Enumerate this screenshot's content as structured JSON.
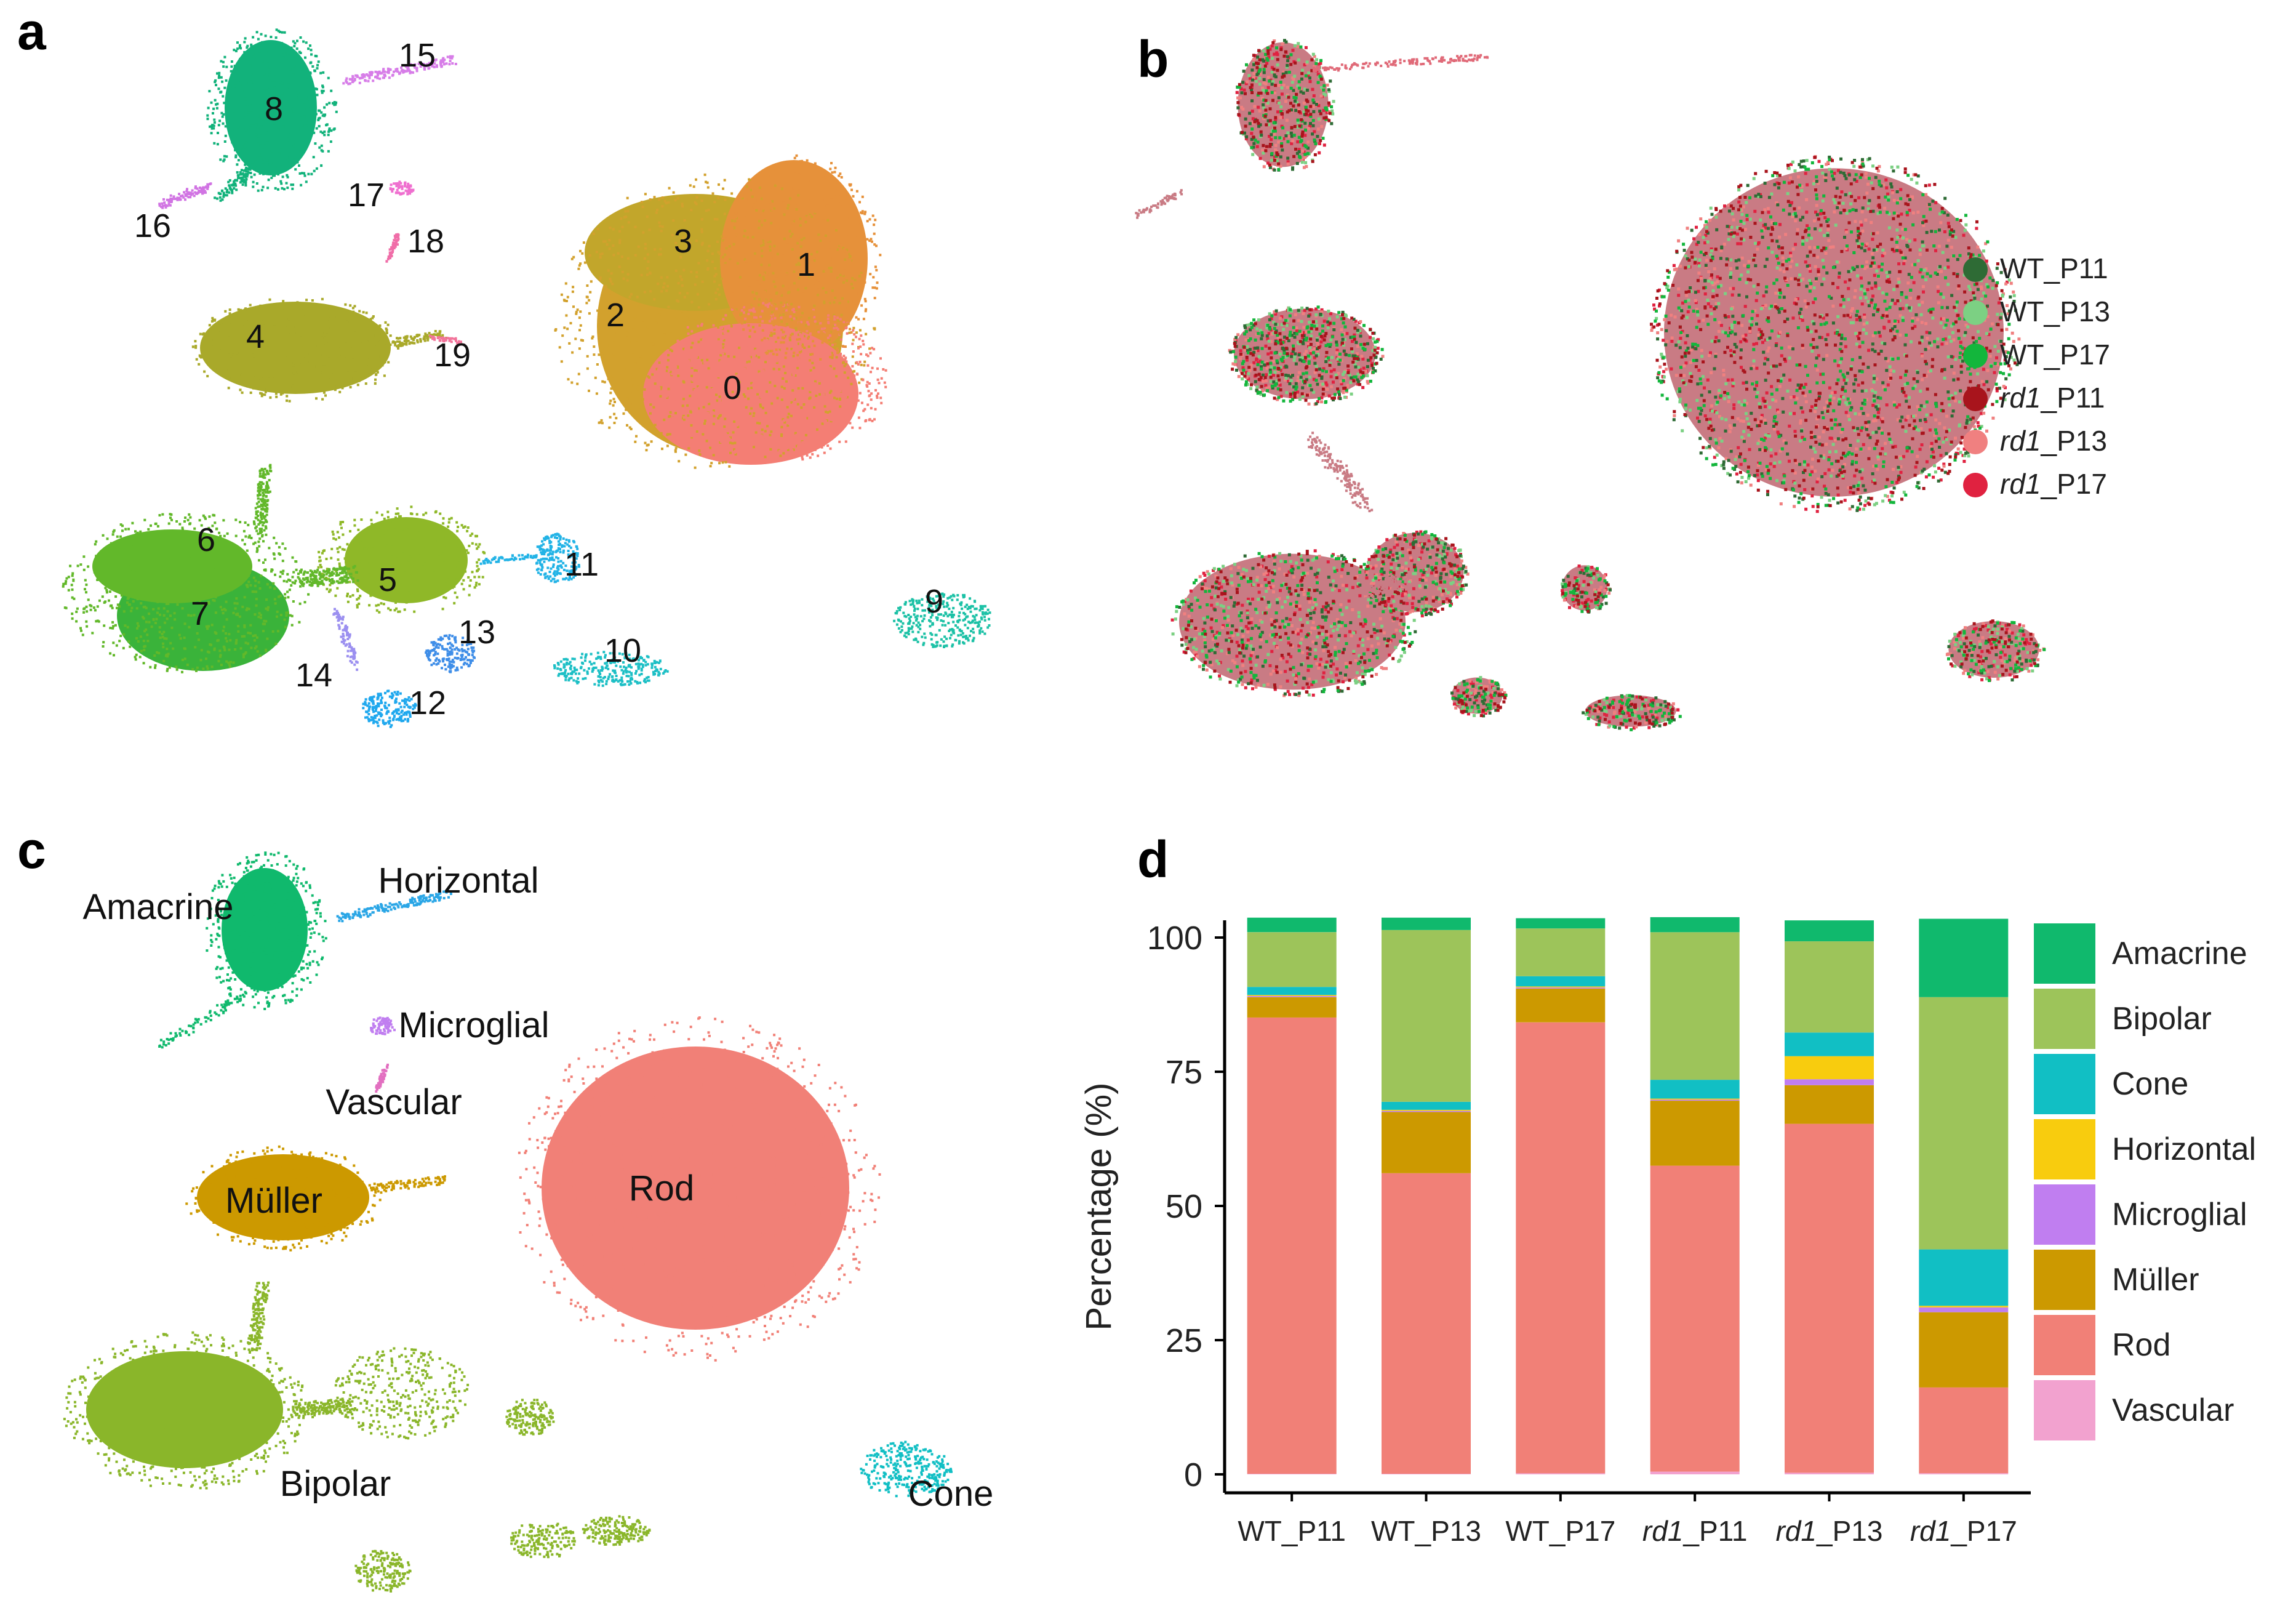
{
  "panels": {
    "a": {
      "letter": "a"
    },
    "b": {
      "letter": "b"
    },
    "c": {
      "letter": "c"
    },
    "d": {
      "letter": "d"
    }
  },
  "colors": {
    "amacrine": "#10b96d",
    "bipolar": "#9dc45a",
    "cone": "#11bfc4",
    "horizontal": "#f8cc0e",
    "microglial": "#c07ef0",
    "muller": "#cc9900",
    "rod": "#f18077",
    "vascular": "#f2a2cf"
  },
  "chart_data": [
    {
      "type": "scatter",
      "panel": "a",
      "annotations": [
        "0",
        "1",
        "2",
        "3",
        "4",
        "5",
        "6",
        "7",
        "8",
        "9",
        "10",
        "11",
        "12",
        "13",
        "14",
        "15",
        "16",
        "17",
        "18",
        "19"
      ]
    },
    {
      "type": "scatter",
      "panel": "b",
      "legend": [
        {
          "prefix": "WT",
          "suffix": "_P11",
          "italic": false,
          "color": "#2e6b35"
        },
        {
          "prefix": "WT",
          "suffix": "_P13",
          "italic": false,
          "color": "#7cd083"
        },
        {
          "prefix": "WT",
          "suffix": "_P17",
          "italic": false,
          "color": "#13b63c"
        },
        {
          "prefix": "rd1",
          "suffix": "_P11",
          "italic": true,
          "color": "#a8141c"
        },
        {
          "prefix": "rd1",
          "suffix": "_P13",
          "italic": true,
          "color": "#f08080"
        },
        {
          "prefix": "rd1",
          "suffix": "_P17",
          "italic": true,
          "color": "#e02240"
        }
      ],
      "legend_placement": "right"
    },
    {
      "type": "scatter",
      "panel": "c",
      "annotations": [
        "Amacrine",
        "Horizontal",
        "Microglial",
        "Vascular",
        "Müller",
        "Rod",
        "Bipolar",
        "Cone"
      ]
    },
    {
      "type": "bar",
      "panel": "d",
      "stacked": true,
      "ylabel": "Percentage (%)",
      "ylim": [
        0,
        100
      ],
      "yticks": [
        "0",
        "25",
        "50",
        "75",
        "100"
      ],
      "categories": [
        {
          "prefix": "WT",
          "suffix": "_P11",
          "italic": false
        },
        {
          "prefix": "WT",
          "suffix": "_P13",
          "italic": false
        },
        {
          "prefix": "WT",
          "suffix": "_P17",
          "italic": false
        },
        {
          "prefix": "rd1",
          "suffix": "_P11",
          "italic": true
        },
        {
          "prefix": "rd1",
          "suffix": "_P13",
          "italic": true
        },
        {
          "prefix": "rd1",
          "suffix": "_P17",
          "italic": true
        }
      ],
      "series": [
        {
          "name": "Vascular",
          "key": "vascular",
          "values": [
            0.1,
            0.1,
            0.2,
            0.5,
            0.3,
            0.2
          ]
        },
        {
          "name": "Rod",
          "key": "rod",
          "values": [
            85,
            56,
            84,
            57,
            65,
            16
          ]
        },
        {
          "name": "Müller",
          "key": "muller",
          "values": [
            3.8,
            11.4,
            6.3,
            12.1,
            7.2,
            14
          ]
        },
        {
          "name": "Microglial",
          "key": "microglial",
          "values": [
            0.2,
            0.2,
            0.2,
            0.2,
            1.1,
            0.9
          ]
        },
        {
          "name": "Horizontal",
          "key": "horizontal",
          "values": [
            0.2,
            0.2,
            0.2,
            0.2,
            4.3,
            0.3
          ]
        },
        {
          "name": "Cone",
          "key": "cone",
          "values": [
            1.5,
            1.5,
            1.9,
            3.5,
            4.4,
            10.5
          ]
        },
        {
          "name": "Bipolar",
          "key": "bipolar",
          "values": [
            10.2,
            32,
            8.9,
            27.5,
            17,
            47
          ]
        },
        {
          "name": "Amacrine",
          "key": "amacrine",
          "values": [
            2.7,
            2.3,
            1.9,
            2.8,
            3.9,
            14.6
          ]
        }
      ],
      "legend_order": [
        "Amacrine",
        "Bipolar",
        "Cone",
        "Horizontal",
        "Microglial",
        "Müller",
        "Rod",
        "Vascular"
      ],
      "legend_placement": "right",
      "grid": false
    }
  ]
}
